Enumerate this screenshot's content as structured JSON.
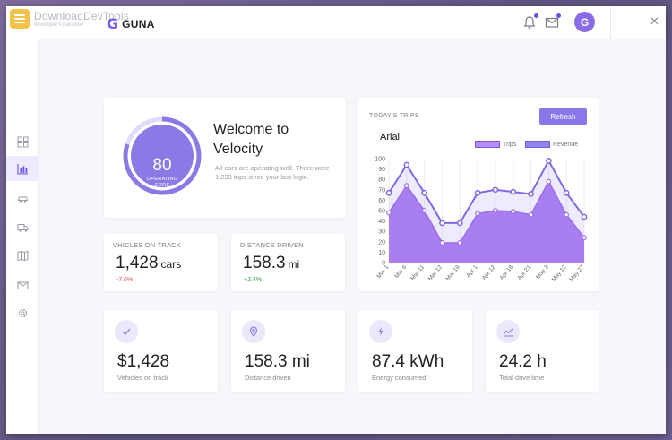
{
  "watermark": {
    "title": "DownloadDevTools",
    "subtitle": "developer's paradise"
  },
  "brand": {
    "icon": "G",
    "name": "GUNA"
  },
  "header": {
    "avatar": "G",
    "minimize": "—",
    "close": "✕"
  },
  "sidebar": {
    "items": [
      "dashboard-icon",
      "bar-chart-icon",
      "car-icon",
      "truck-icon",
      "map-icon",
      "mail-icon",
      "gear-icon"
    ],
    "active": 1
  },
  "welcome": {
    "ring_value": "80",
    "ring_label_1": "OPERATING",
    "ring_label_2": "CORE",
    "ring_progress": 0.8,
    "title": "Welcome to Velocity",
    "text": "All cars are operating well. There were 1,233 trips since your last login."
  },
  "stats": [
    {
      "label": "VHICLES ON TRACK",
      "value": "1,428",
      "unit": "cars",
      "change": "-7.6%",
      "change_color": "#d9534f"
    },
    {
      "label": "DISTANCE DRIVEN",
      "value": "158.3",
      "unit": "mi",
      "change": "+2.4%",
      "change_color": "#3a9a4a"
    }
  ],
  "kpis": [
    {
      "icon": "check-icon",
      "value": "$1,428",
      "label": "Vehicles on track"
    },
    {
      "icon": "pin-icon",
      "value": "158.3 mi",
      "label": "Distance driven"
    },
    {
      "icon": "bolt-icon",
      "value": "87.4 kWh",
      "label": "Energy consumed"
    },
    {
      "icon": "trend-icon",
      "value": "24.2 h",
      "label": "Total drive time"
    }
  ],
  "trips": {
    "title": "TODAY'S TRIPS",
    "refresh_label": "Refresh",
    "heading": "Arial",
    "legend": [
      "Trips",
      "Revenue"
    ]
  },
  "chart_data": {
    "type": "area",
    "categories": [
      "Mar 1",
      "Mar 6",
      "Mar 11",
      "Mar 12",
      "Mar 18",
      "Apr 1",
      "Apr 12",
      "Apr 18",
      "Apr 21",
      "May 2",
      "May 12",
      "May 27"
    ],
    "series": [
      {
        "name": "Trips",
        "values": [
          48,
          74,
          50,
          19,
          19,
          47,
          50,
          49,
          46,
          78,
          46,
          24
        ],
        "style": "filled-area",
        "color": "#a87ef0"
      },
      {
        "name": "Revenue",
        "values": [
          67,
          94,
          67,
          38,
          38,
          67,
          70,
          68,
          66,
          98,
          67,
          44
        ],
        "style": "line",
        "color": "#7b6be0"
      }
    ],
    "yticks": [
      0,
      10,
      20,
      30,
      40,
      50,
      60,
      70,
      80,
      90,
      100
    ],
    "ylim": [
      0,
      100
    ],
    "grid": "vertical",
    "legend_position": "top-right"
  }
}
